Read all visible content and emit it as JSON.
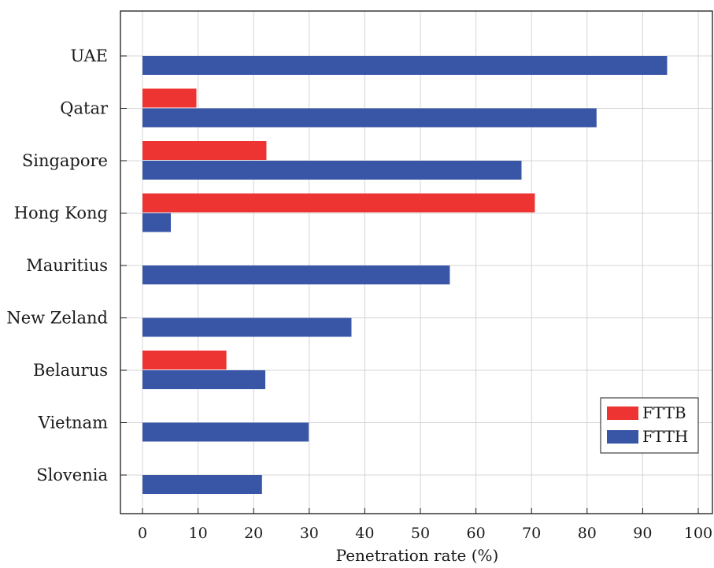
{
  "chart_data": {
    "type": "bar",
    "orientation": "horizontal",
    "categories": [
      "UAE",
      "Qatar",
      "Singapore",
      "Hong Kong",
      "Mauritius",
      "New Zeland",
      "Belaurus",
      "Vietnam",
      "Slovenia"
    ],
    "series": [
      {
        "name": "FTTB",
        "color": "#ee3333",
        "values": [
          null,
          9.7,
          22.3,
          70.6,
          null,
          null,
          15.1,
          null,
          null
        ]
      },
      {
        "name": "FTTH",
        "color": "#3955a6",
        "values": [
          94.4,
          81.7,
          68.2,
          5.1,
          55.3,
          37.6,
          22.1,
          29.9,
          21.5
        ]
      }
    ],
    "title": "",
    "xlabel": "Penetration rate (%)",
    "ylabel": "",
    "xlim": [
      0,
      100
    ],
    "xticks": [
      "0",
      "10",
      "20",
      "30",
      "40",
      "50",
      "60",
      "70",
      "80",
      "90",
      "100"
    ],
    "grid": true,
    "legend_position": "bottom-right"
  }
}
